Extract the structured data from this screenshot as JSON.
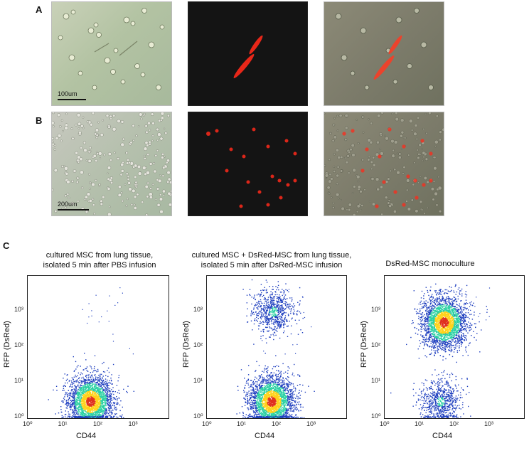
{
  "panels": {
    "a_label": "A",
    "b_label": "B",
    "c_label": "C",
    "scale_a": "100um",
    "scale_b": "200um"
  },
  "colors": {
    "fluorescence": "#ff2a1a",
    "density_low": "#1f3fbf",
    "density_mid": "#2bd1a3",
    "density_high": "#ffd21a",
    "density_peak": "#e0301e"
  },
  "chart_data": [
    {
      "type": "scatter",
      "title": "cultured MSC from lung tissue, isolated 5 min after PBS infusion",
      "title_lines": [
        "cultured MSC from lung tissue,",
        "isolated 5 min after PBS infusion"
      ],
      "xlabel": "CD44",
      "ylabel": "RFP (DsRed)",
      "xscale": "log",
      "yscale": "log",
      "xlim": [
        1,
        10000
      ],
      "ylim": [
        1,
        10000
      ],
      "xticks": [
        "10⁰",
        "10¹",
        "10²",
        "10³"
      ],
      "yticks": [
        "10⁰",
        "10¹",
        "10²",
        "10³"
      ],
      "populations": [
        {
          "x_center": 60,
          "y_center": 3,
          "spread": "dense"
        }
      ]
    },
    {
      "type": "scatter",
      "title": "cultured MSC + DsRed-MSC from lung tissue, isolated 5 min after DsRed-MSC infusion",
      "title_lines": [
        "cultured MSC + DsRed-MSC from lung tissue,",
        "isolated 5 min after DsRed-MSC infusion"
      ],
      "xlabel": "CD44",
      "ylabel": "RFP (DsRed)",
      "xscale": "log",
      "yscale": "log",
      "xlim": [
        1,
        10000
      ],
      "ylim": [
        1,
        10000
      ],
      "xticks": [
        "10⁰",
        "10¹",
        "10²",
        "10³"
      ],
      "yticks": [
        "10⁰",
        "10¹",
        "10²",
        "10³"
      ],
      "populations": [
        {
          "x_center": 70,
          "y_center": 3,
          "spread": "dense"
        },
        {
          "x_center": 80,
          "y_center": 1000,
          "spread": "sparse"
        }
      ]
    },
    {
      "type": "scatter",
      "title": "DsRed-MSC monoculture",
      "title_lines": [
        "DsRed-MSC monoculture"
      ],
      "xlabel": "CD44",
      "ylabel": "RFP (DsRed)",
      "xscale": "log",
      "yscale": "log",
      "xlim": [
        1,
        10000
      ],
      "ylim": [
        1,
        10000
      ],
      "xticks": [
        "10⁰",
        "10¹",
        "10²",
        "10³"
      ],
      "yticks": [
        "10⁰",
        "10¹",
        "10²",
        "10³"
      ],
      "populations": [
        {
          "x_center": 50,
          "y_center": 500,
          "spread": "dense"
        },
        {
          "x_center": 40,
          "y_center": 3,
          "spread": "sparse"
        }
      ]
    }
  ]
}
